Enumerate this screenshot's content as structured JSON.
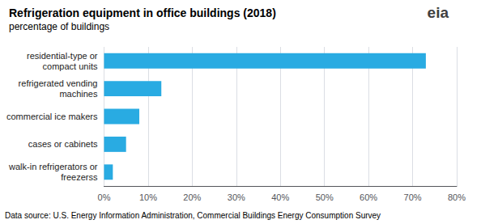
{
  "chart_data": {
    "type": "bar",
    "orientation": "horizontal",
    "title": "Refrigeration equipment in office buildings (2018)",
    "subtitle": "percentage of buildings",
    "categories": [
      "walk-in refrigerators or\nfreezerss",
      "cases or cabinets",
      "commercial ice makers",
      "refrigerated vending\nmachines",
      "residential-type or\ncompact units"
    ],
    "values": [
      2,
      5,
      8,
      13,
      73
    ],
    "color": "#29ABE2",
    "xlim": [
      0,
      80
    ],
    "xticks": [
      {
        "value": 0,
        "label": "0%"
      },
      {
        "value": 10,
        "label": "10%"
      },
      {
        "value": 20,
        "label": "20%"
      },
      {
        "value": 30,
        "label": "30%"
      },
      {
        "value": 40,
        "label": "40%"
      },
      {
        "value": 50,
        "label": "50%"
      },
      {
        "value": 60,
        "label": "60%"
      },
      {
        "value": 70,
        "label": "70%"
      },
      {
        "value": 80,
        "label": "80%"
      }
    ],
    "grid": true,
    "annotations": [
      "Data source: U.S. Energy Information Administration, Commercial Buildings Energy Consumption Survey",
      "eia"
    ]
  }
}
